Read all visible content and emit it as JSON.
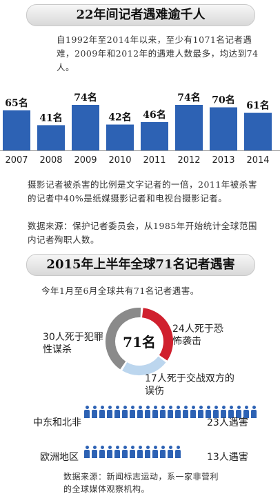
{
  "section1": {
    "title": "22年间记者遇难逾千人",
    "intro": "自1992年至2014年以来，至少有1071名记者遇难，2009年和2012年的遇难人数最多，均达到74人。",
    "note": "摄影记者被杀害的比例是文字记者的一倍，2011年被杀害的记者中40%是纸媒摄影记者和电视台摄影记者。",
    "source": "数据来源：保护记者委员会，从1985年开始统计全球范围内记者殉职人数。"
  },
  "section2": {
    "title": "2015年上半年全球71名记者遇害",
    "intro": "今年1月至6月全球共有71名记者遇害。",
    "source": "数据来源：新闻标志运动，系一家非营利的全球媒体观察机构。",
    "rows": [
      {
        "label": "中东和北非",
        "value_text": "23人遇害",
        "count": 23
      },
      {
        "label": "欧洲地区",
        "value_text": "13人遇害",
        "count": 13
      }
    ]
  },
  "colors": {
    "bar": "#2d62b4",
    "red": "#d0202e",
    "gray": "#8a8a8a",
    "lightblue": "#bcd6ee"
  },
  "chart_data": [
    {
      "type": "bar",
      "categories": [
        "2007",
        "2008",
        "2009",
        "2010",
        "2011",
        "2012",
        "2013",
        "2014"
      ],
      "values": [
        65,
        41,
        74,
        42,
        46,
        74,
        70,
        61
      ],
      "value_labels": [
        "65名",
        "41名",
        "74名",
        "42名",
        "46名",
        "74名",
        "70名",
        "61名"
      ],
      "ylim": [
        0,
        74
      ]
    },
    {
      "type": "pie",
      "center_label": "71名",
      "categories": [
        "24人死于恐怖袭击",
        "17人死于交战双方的误伤",
        "30人死于犯罪性谋杀"
      ],
      "values": [
        24,
        17,
        30
      ],
      "colors": [
        "#d0202e",
        "#bcd6ee",
        "#8a8a8a"
      ]
    }
  ]
}
